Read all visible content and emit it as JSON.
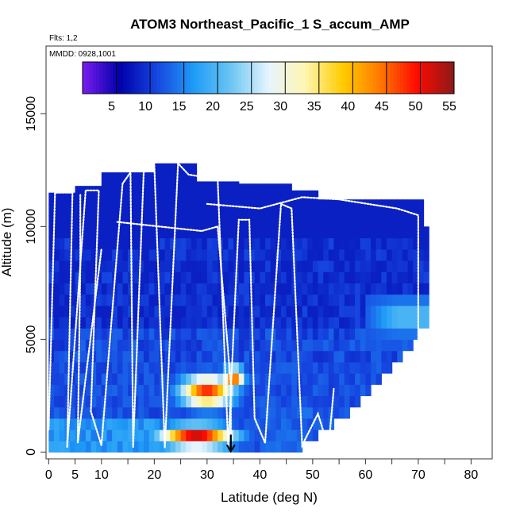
{
  "chart_data": {
    "type": "heatmap",
    "title": "ATOM3 Northeast_Pacific_1 S_accum_AMP",
    "flights_note": "Flts: 1,2",
    "date_note": "MMDD: 0928,1001",
    "xlabel": "Latitude (deg N)",
    "ylabel": "Altitude (m)",
    "xlim": [
      -0.5,
      84
    ],
    "ylim": [
      -300,
      18000
    ],
    "x_ticks": [
      0,
      5,
      10,
      20,
      30,
      40,
      50,
      60,
      70,
      80
    ],
    "x_minor_ticks": [
      15,
      25,
      35,
      45,
      55,
      65,
      75
    ],
    "y_ticks": [
      0,
      5000,
      10000,
      15000
    ],
    "colorbar": {
      "min": 0,
      "max": 55,
      "ticks": [
        5,
        10,
        15,
        20,
        25,
        30,
        35,
        40,
        45,
        50,
        55
      ],
      "colors": [
        "#7b1cf0",
        "#0000aa",
        "#1646e0",
        "#1f9cf7",
        "#6cc6f2",
        "#e6f4ff",
        "#fff6b0",
        "#ffcc00",
        "#ff7a00",
        "#ff0a00",
        "#8b1a1a"
      ]
    },
    "marker": {
      "latitude": 34.5,
      "altitude": 0
    },
    "grid": false
  }
}
